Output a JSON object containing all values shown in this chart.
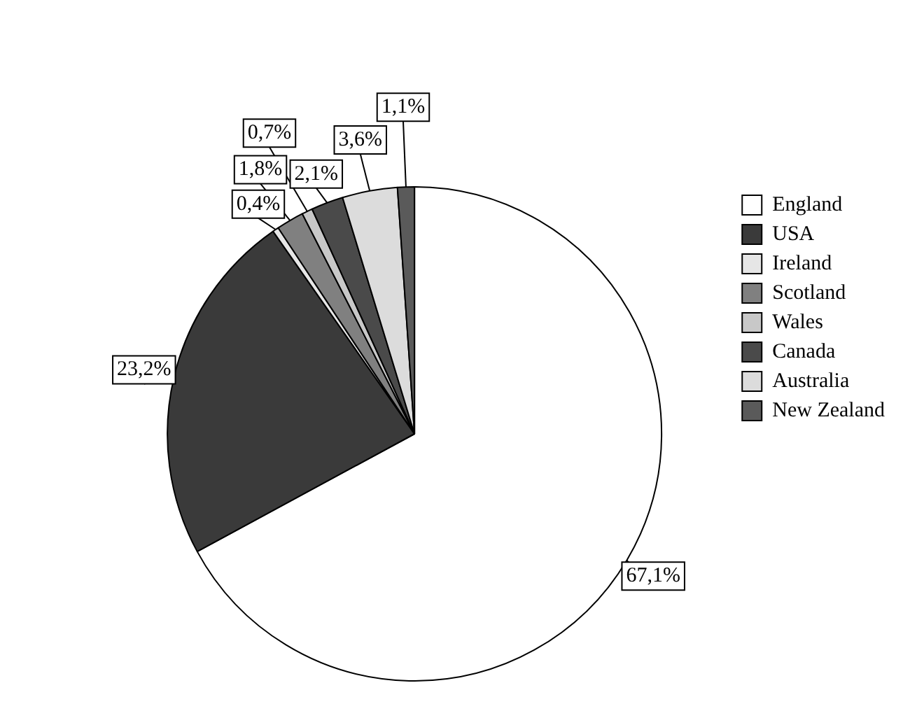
{
  "chart_data": {
    "type": "pie",
    "categories": [
      "England",
      "USA",
      "Ireland",
      "Scotland",
      "Wales",
      "Canada",
      "Australia",
      "New Zealand"
    ],
    "values": [
      67.1,
      23.2,
      0.4,
      1.8,
      0.7,
      2.1,
      3.6,
      1.1
    ],
    "value_labels": [
      "67,1%",
      "23,2%",
      "0,4%",
      "1,8%",
      "0,7%",
      "2,1%",
      "3,6%",
      "1,1%"
    ],
    "colors": [
      "#ffffff",
      "#3a3a3a",
      "#e6e6e6",
      "#808080",
      "#c8c8c8",
      "#4a4a4a",
      "#dcdcdc",
      "#5a5a5a"
    ],
    "legend": "top right"
  }
}
